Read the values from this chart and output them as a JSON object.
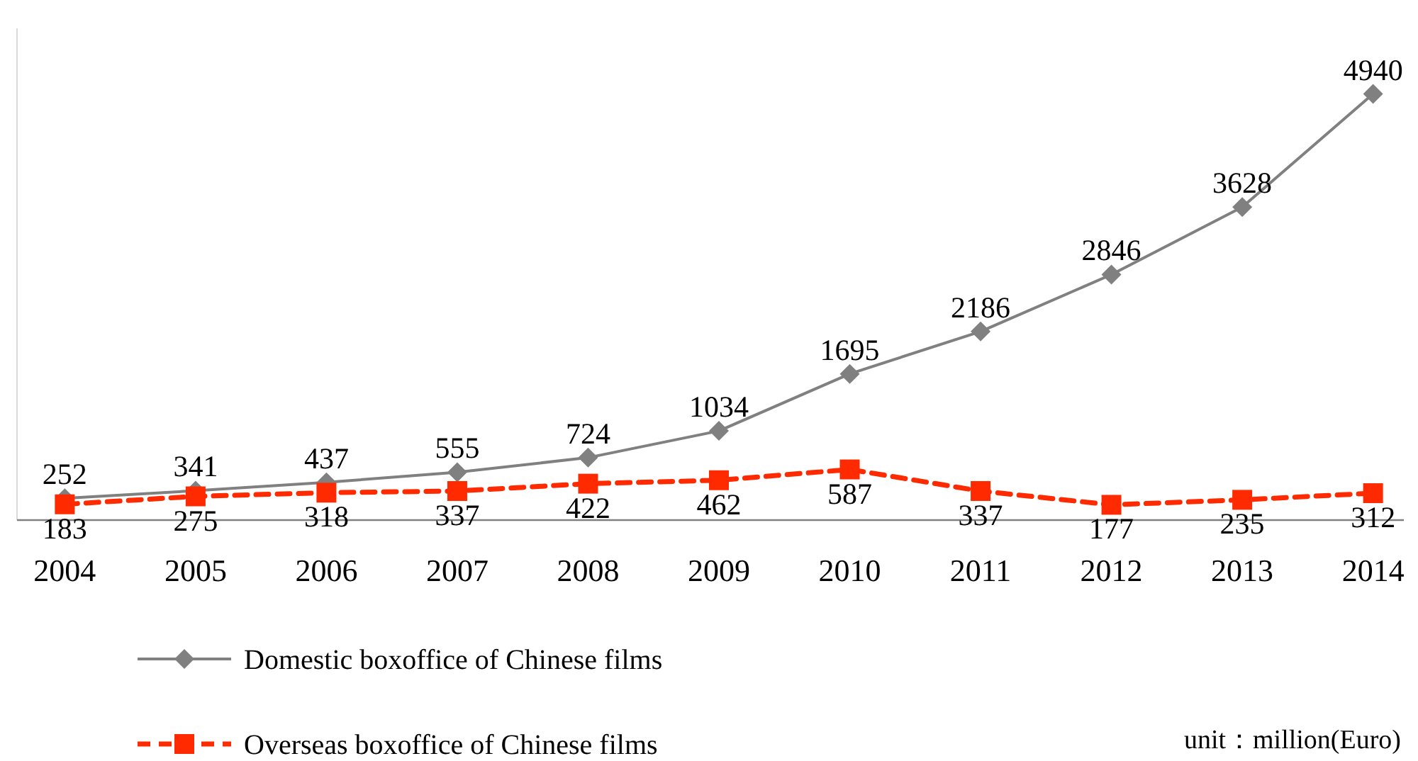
{
  "chart_data": {
    "type": "line",
    "categories": [
      "2004",
      "2005",
      "2006",
      "2007",
      "2008",
      "2009",
      "2010",
      "2011",
      "2012",
      "2013",
      "2014"
    ],
    "series": [
      {
        "name": "Domestic boxoffice of Chinese films",
        "color": "#808080",
        "marker": "diamond",
        "line_style": "solid",
        "values": [
          252,
          341,
          437,
          555,
          724,
          1034,
          1695,
          2186,
          2846,
          3628,
          4940
        ]
      },
      {
        "name": "Overseas boxoffice of Chinese films",
        "color": "#ff2a00",
        "marker": "square",
        "line_style": "dashed",
        "values": [
          183,
          275,
          318,
          337,
          422,
          462,
          587,
          337,
          177,
          235,
          312
        ]
      }
    ],
    "ylim": [
      0,
      5700
    ],
    "tick_labels": "x",
    "data_labels": true,
    "legend": "bottom left",
    "annotations": [
      "unit：million(Euro)"
    ]
  }
}
